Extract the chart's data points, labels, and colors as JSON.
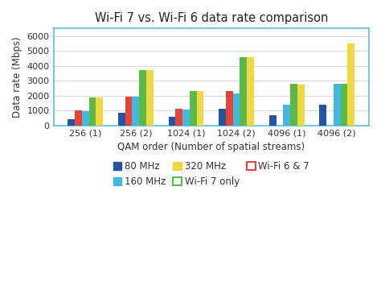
{
  "title": "Wi-Fi 7 vs. Wi-Fi 6 data rate comparison",
  "xlabel": "QAM order (Number of spatial streams)",
  "ylabel": "Data rate (Mbps)",
  "categories": [
    "256 (1)",
    "256 (2)",
    "1024 (1)",
    "1024 (2)",
    "4096 (1)",
    "4096 (2)"
  ],
  "series": {
    "80 MHz": [
      430,
      860,
      575,
      1150,
      688,
      1375
    ],
    "Wi-Fi 6 & 7": [
      1000,
      1960,
      1100,
      2300,
      0,
      0
    ],
    "160 MHz": [
      960,
      1920,
      1050,
      2160,
      1400,
      2800
    ],
    "Wi-Fi 7 only": [
      1900,
      3700,
      2300,
      4600,
      2800,
      2800
    ],
    "320 MHz": [
      1900,
      3700,
      2300,
      4600,
      2750,
      5500
    ]
  },
  "colors": {
    "80 MHz": "#2454a3",
    "Wi-Fi 6 & 7": "#e8433a",
    "160 MHz": "#45b8e0",
    "Wi-Fi 7 only": "#5bba47",
    "320 MHz": "#f0d840"
  },
  "bar_order": [
    "80 MHz",
    "Wi-Fi 6 & 7",
    "160 MHz",
    "Wi-Fi 7 only",
    "320 MHz"
  ],
  "ylim": [
    0,
    6500
  ],
  "yticks": [
    0,
    1000,
    2000,
    3000,
    4000,
    5000,
    6000
  ],
  "background_color": "#ffffff",
  "chart_bg": "#f8fbff",
  "border_color": "#5bbce4",
  "title_fontsize": 10.5,
  "axis_fontsize": 8.5,
  "tick_fontsize": 8,
  "legend_fontsize": 8.5
}
